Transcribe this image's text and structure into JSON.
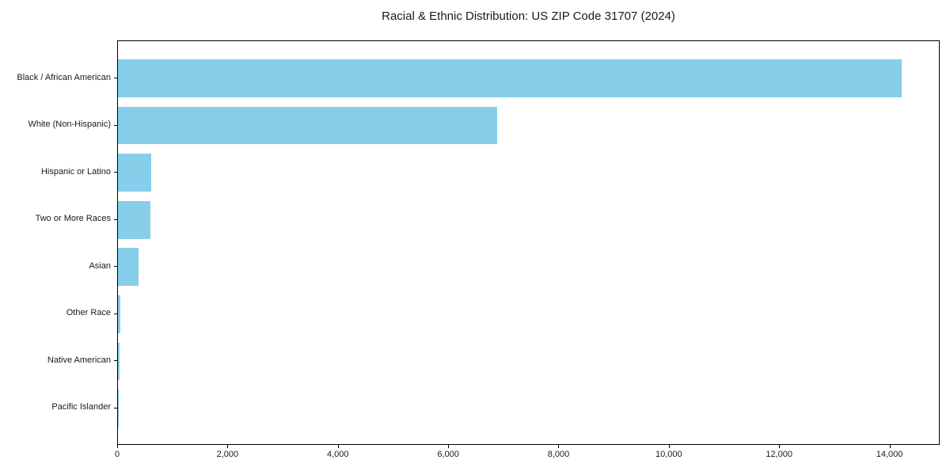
{
  "figure": {
    "background": "#ffffff"
  },
  "chart_data": {
    "type": "bar",
    "orientation": "horizontal",
    "title": "Racial & Ethnic Distribution: US ZIP Code 31707 (2024)",
    "categories": [
      "Black / African American",
      "White (Non-Hispanic)",
      "Hispanic or Latino",
      "Two or More Races",
      "Asian",
      "Other Race",
      "Native American",
      "Pacific Islander"
    ],
    "values": [
      14200,
      6880,
      600,
      590,
      380,
      50,
      30,
      10
    ],
    "xlabel": "",
    "ylabel": "",
    "xlim": [
      0,
      14910
    ],
    "xticks": [
      0,
      2000,
      4000,
      6000,
      8000,
      10000,
      12000,
      14000
    ],
    "xtick_labels": [
      "0",
      "2,000",
      "4,000",
      "6,000",
      "8,000",
      "10,000",
      "12,000",
      "14,000"
    ],
    "bar_color": "#87CEEB",
    "axis_color": "#000000",
    "text_color": "#1a1a1a",
    "grid": false,
    "legend": null
  }
}
